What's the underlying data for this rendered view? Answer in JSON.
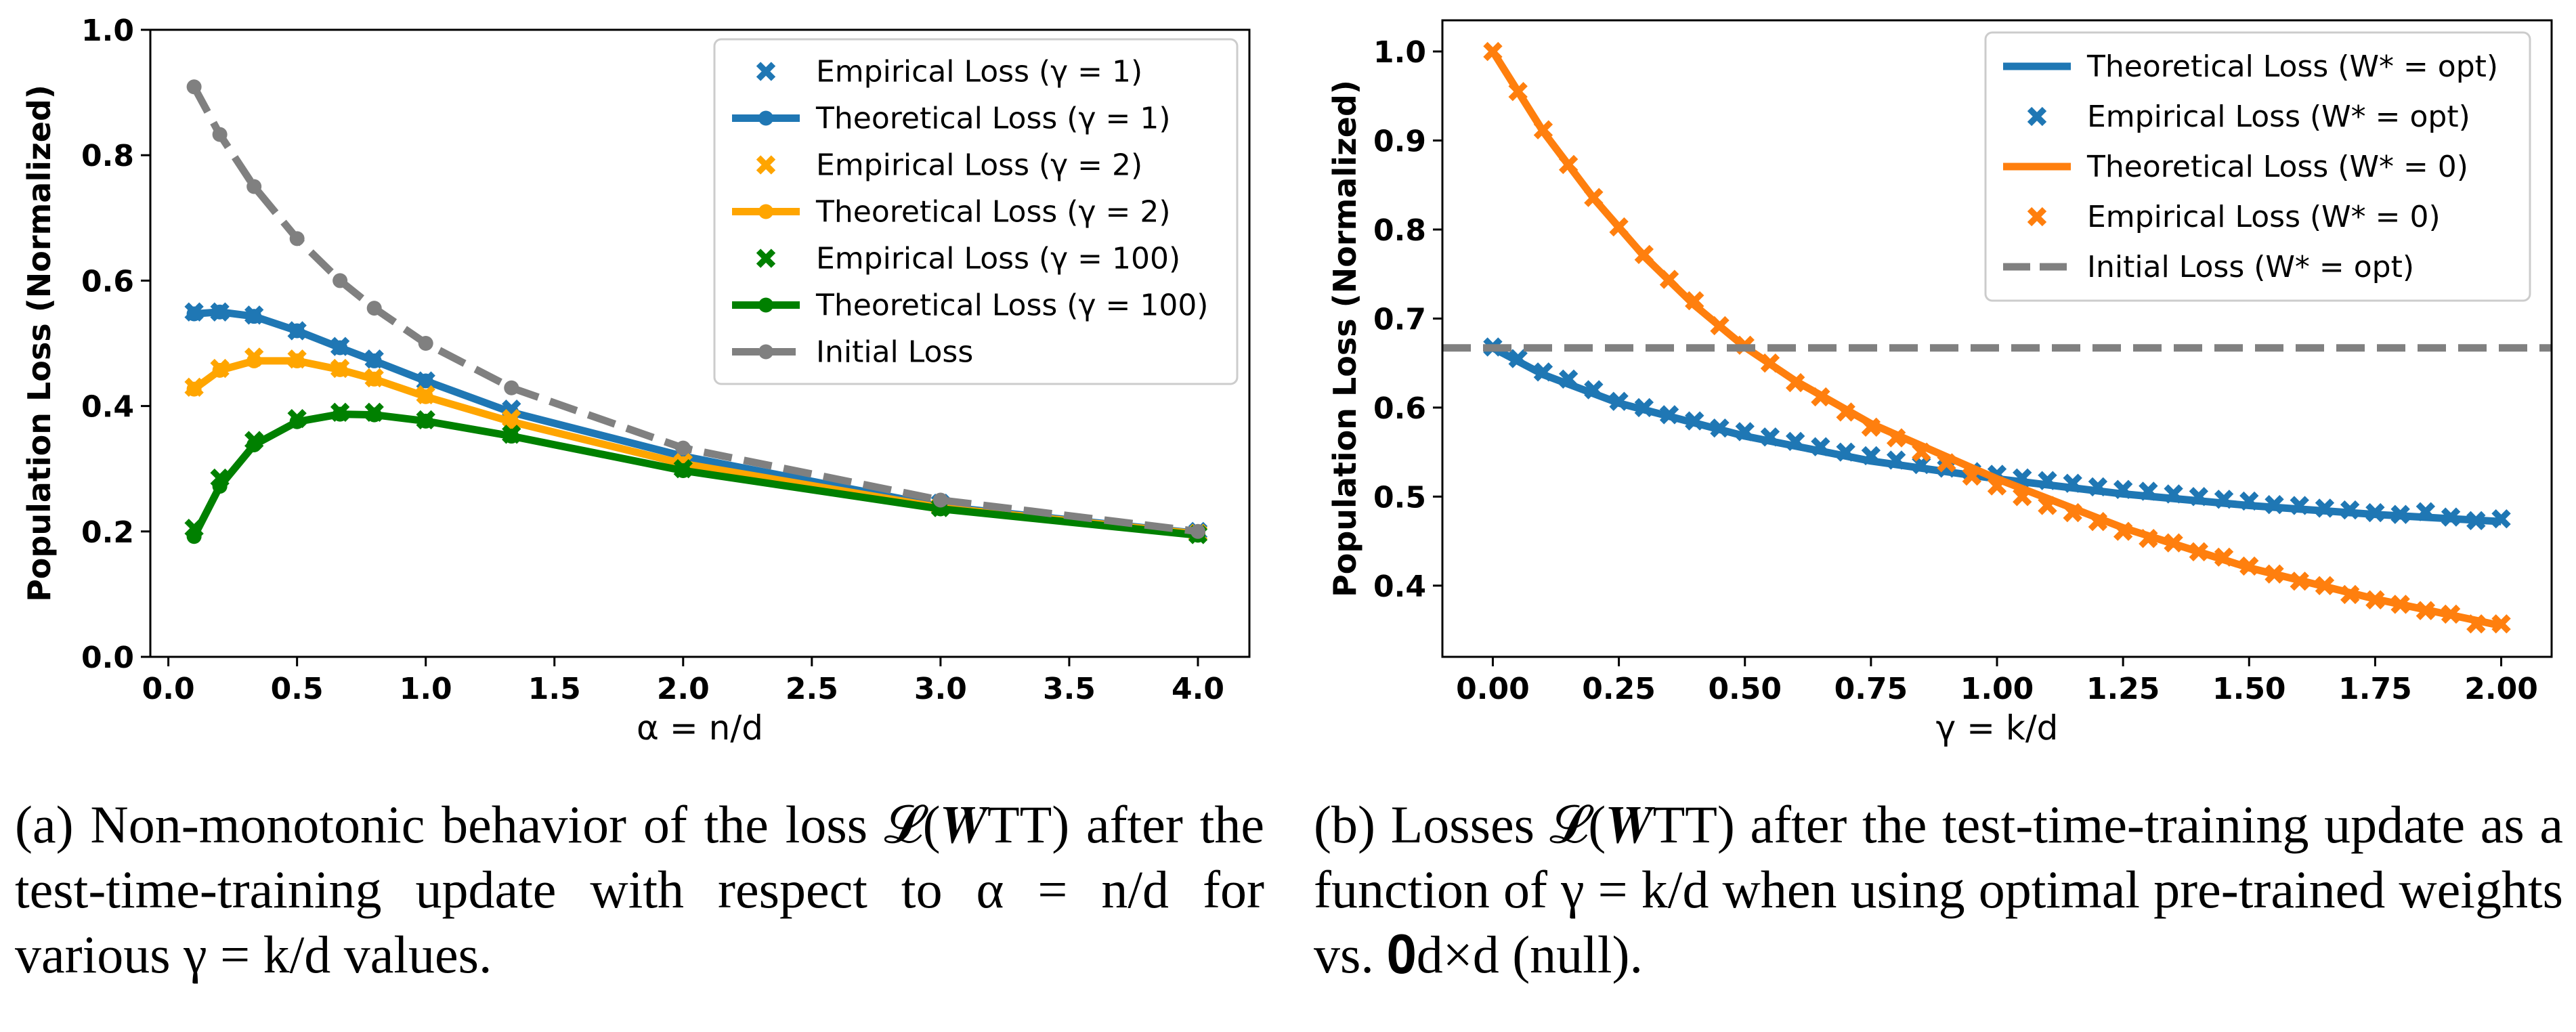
{
  "chart_data": [
    {
      "type": "line",
      "id": "a",
      "xlabel": "α = n/d",
      "ylabel": "Population Loss (Normalized)",
      "xlim": [
        -0.07,
        4.2
      ],
      "ylim": [
        0.0,
        1.0
      ],
      "xticks": [
        0.0,
        0.5,
        1.0,
        1.5,
        2.0,
        2.5,
        3.0,
        3.5,
        4.0
      ],
      "yticks": [
        0.0,
        0.2,
        0.4,
        0.6,
        0.8,
        1.0
      ],
      "xtick_labels": [
        "0.0",
        "0.5",
        "1.0",
        "1.5",
        "2.0",
        "2.5",
        "3.0",
        "3.5",
        "4.0"
      ],
      "ytick_labels": [
        "0.0",
        "0.2",
        "0.4",
        "0.6",
        "0.8",
        "1.0"
      ],
      "legend_position": "top-right",
      "series": [
        {
          "name": "Empirical Loss (γ = 1)",
          "color": "#1f77b4",
          "style": "x-markers",
          "x": [
            0.1,
            0.2,
            0.333,
            0.5,
            0.667,
            0.8,
            1.0,
            1.333,
            2.0,
            3.0,
            4.0
          ],
          "y": [
            0.55,
            0.55,
            0.545,
            0.52,
            0.495,
            0.475,
            0.44,
            0.395,
            0.325,
            0.245,
            0.2
          ]
        },
        {
          "name": "Theoretical Loss (γ = 1)",
          "color": "#1f77b4",
          "style": "line-dots",
          "x": [
            0.1,
            0.2,
            0.333,
            0.5,
            0.667,
            0.8,
            1.0,
            1.333,
            2.0,
            3.0,
            4.0
          ],
          "y": [
            0.547,
            0.55,
            0.543,
            0.52,
            0.493,
            0.472,
            0.44,
            0.39,
            0.32,
            0.24,
            0.197
          ]
        },
        {
          "name": "Empirical Loss (γ = 2)",
          "color": "#ffa500",
          "style": "x-markers",
          "x": [
            0.1,
            0.2,
            0.333,
            0.5,
            0.667,
            0.8,
            1.0,
            1.333,
            2.0,
            3.0,
            4.0
          ],
          "y": [
            0.43,
            0.46,
            0.478,
            0.475,
            0.46,
            0.445,
            0.418,
            0.38,
            0.31,
            0.24,
            0.197
          ]
        },
        {
          "name": "Theoretical Loss (γ = 2)",
          "color": "#ffa500",
          "style": "line-dots",
          "x": [
            0.1,
            0.2,
            0.333,
            0.5,
            0.667,
            0.8,
            1.0,
            1.333,
            2.0,
            3.0,
            4.0
          ],
          "y": [
            0.427,
            0.457,
            0.472,
            0.472,
            0.458,
            0.443,
            0.415,
            0.375,
            0.308,
            0.238,
            0.196
          ]
        },
        {
          "name": "Empirical Loss (γ = 100)",
          "color": "#008000",
          "style": "x-markers",
          "x": [
            0.1,
            0.2,
            0.333,
            0.5,
            0.667,
            0.8,
            1.0,
            1.333,
            2.0,
            3.0,
            4.0
          ],
          "y": [
            0.205,
            0.285,
            0.345,
            0.38,
            0.39,
            0.39,
            0.378,
            0.355,
            0.3,
            0.238,
            0.195
          ]
        },
        {
          "name": "Theoretical Loss (γ = 100)",
          "color": "#008000",
          "style": "line-dots",
          "x": [
            0.1,
            0.2,
            0.333,
            0.5,
            0.667,
            0.8,
            1.0,
            1.333,
            2.0,
            3.0,
            4.0
          ],
          "y": [
            0.192,
            0.272,
            0.338,
            0.375,
            0.387,
            0.386,
            0.376,
            0.352,
            0.297,
            0.236,
            0.194
          ]
        },
        {
          "name": "Initial Loss",
          "color": "#808080",
          "style": "dashed-dots",
          "x": [
            0.1,
            0.2,
            0.333,
            0.5,
            0.667,
            0.8,
            1.0,
            1.333,
            2.0,
            3.0,
            4.0
          ],
          "y": [
            0.909,
            0.833,
            0.75,
            0.667,
            0.6,
            0.556,
            0.5,
            0.429,
            0.333,
            0.25,
            0.2
          ]
        }
      ],
      "legend_order": [
        "Empirical Loss (γ = 1)",
        "Theoretical Loss (γ = 1)",
        "Empirical Loss (γ = 2)",
        "Theoretical Loss (γ = 2)",
        "Empirical Loss (γ = 100)",
        "Theoretical Loss (γ = 100)",
        "Initial Loss"
      ]
    },
    {
      "type": "line",
      "id": "b",
      "xlabel": "γ = k/d",
      "ylabel": "Population Loss (Normalized)",
      "xlim": [
        -0.1,
        2.1
      ],
      "ylim": [
        0.32,
        1.035
      ],
      "xticks": [
        0.0,
        0.25,
        0.5,
        0.75,
        1.0,
        1.25,
        1.5,
        1.75,
        2.0
      ],
      "yticks": [
        0.4,
        0.5,
        0.6,
        0.7,
        0.8,
        0.9,
        1.0
      ],
      "xtick_labels": [
        "0.00",
        "0.25",
        "0.50",
        "0.75",
        "1.00",
        "1.25",
        "1.50",
        "1.75",
        "2.00"
      ],
      "ytick_labels": [
        "0.4",
        "0.5",
        "0.6",
        "0.7",
        "0.8",
        "0.9",
        "1.0"
      ],
      "legend_position": "top-right",
      "series": [
        {
          "name": "Theoretical Loss (W* = opt)",
          "color": "#1f77b4",
          "style": "line",
          "x": [
            0.0,
            0.1,
            0.25,
            0.5,
            0.75,
            1.0,
            1.25,
            1.5,
            1.75,
            2.0
          ],
          "y": [
            0.667,
            0.637,
            0.605,
            0.568,
            0.54,
            0.52,
            0.503,
            0.49,
            0.48,
            0.472
          ]
        },
        {
          "name": "Empirical Loss (W* = opt)",
          "color": "#1f77b4",
          "style": "x-markers",
          "x": [
            0.0,
            0.05,
            0.1,
            0.15,
            0.2,
            0.25,
            0.3,
            0.35,
            0.4,
            0.45,
            0.5,
            0.55,
            0.6,
            0.65,
            0.7,
            0.75,
            0.8,
            0.85,
            0.9,
            0.95,
            1.0,
            1.05,
            1.1,
            1.15,
            1.2,
            1.25,
            1.3,
            1.35,
            1.4,
            1.45,
            1.5,
            1.55,
            1.6,
            1.65,
            1.7,
            1.75,
            1.8,
            1.85,
            1.9,
            1.95,
            2.0
          ],
          "y": [
            0.668,
            0.655,
            0.64,
            0.632,
            0.62,
            0.607,
            0.6,
            0.592,
            0.585,
            0.577,
            0.573,
            0.567,
            0.562,
            0.556,
            0.55,
            0.546,
            0.541,
            0.536,
            0.532,
            0.528,
            0.525,
            0.521,
            0.518,
            0.515,
            0.511,
            0.508,
            0.506,
            0.503,
            0.5,
            0.497,
            0.495,
            0.491,
            0.49,
            0.487,
            0.485,
            0.482,
            0.48,
            0.483,
            0.477,
            0.473,
            0.475
          ]
        },
        {
          "name": "Theoretical Loss (W* = 0)",
          "color": "#ff7f0e",
          "style": "line",
          "x": [
            0.0,
            0.1,
            0.2,
            0.3,
            0.4,
            0.5,
            0.6,
            0.75,
            1.0,
            1.25,
            1.5,
            1.75,
            2.0
          ],
          "y": [
            1.0,
            0.91,
            0.835,
            0.77,
            0.715,
            0.668,
            0.63,
            0.582,
            0.52,
            0.465,
            0.42,
            0.385,
            0.355
          ]
        },
        {
          "name": "Empirical Loss (W* = 0)",
          "color": "#ff7f0e",
          "style": "x-markers",
          "x": [
            0.0,
            0.05,
            0.1,
            0.15,
            0.2,
            0.25,
            0.3,
            0.35,
            0.4,
            0.45,
            0.5,
            0.55,
            0.6,
            0.65,
            0.7,
            0.75,
            0.8,
            0.85,
            0.9,
            0.95,
            1.0,
            1.05,
            1.1,
            1.15,
            1.2,
            1.25,
            1.3,
            1.35,
            1.4,
            1.45,
            1.5,
            1.55,
            1.6,
            1.65,
            1.7,
            1.75,
            1.8,
            1.85,
            1.9,
            1.95,
            2.0
          ],
          "y": [
            1.0,
            0.955,
            0.912,
            0.873,
            0.836,
            0.803,
            0.772,
            0.744,
            0.72,
            0.692,
            0.67,
            0.65,
            0.628,
            0.612,
            0.595,
            0.578,
            0.566,
            0.55,
            0.538,
            0.523,
            0.512,
            0.5,
            0.49,
            0.482,
            0.472,
            0.461,
            0.453,
            0.448,
            0.438,
            0.432,
            0.422,
            0.413,
            0.405,
            0.4,
            0.39,
            0.384,
            0.379,
            0.372,
            0.368,
            0.357,
            0.357
          ]
        },
        {
          "name": "Initial Loss (W* = opt)",
          "color": "#808080",
          "style": "dashed",
          "x": [
            -0.1,
            2.1
          ],
          "y": [
            0.667,
            0.667
          ]
        }
      ],
      "legend_order": [
        "Theoretical Loss (W* = opt)",
        "Empirical Loss (W* = opt)",
        "Theoretical Loss (W* = 0)",
        "Empirical Loss (W* = 0)",
        "Initial Loss (W* = opt)"
      ]
    }
  ],
  "captions": {
    "a": "(a) Non-monotonic behavior of the loss 𝓛(𝑾TT) after the test-time-training update with respect to α = n/d for various γ = k/d values.",
    "b": "(b) Losses 𝓛(𝑾TT) after the test-time-training update as a function of γ = k/d when using optimal pre-trained weights vs. 𝟎d×d (null)."
  }
}
